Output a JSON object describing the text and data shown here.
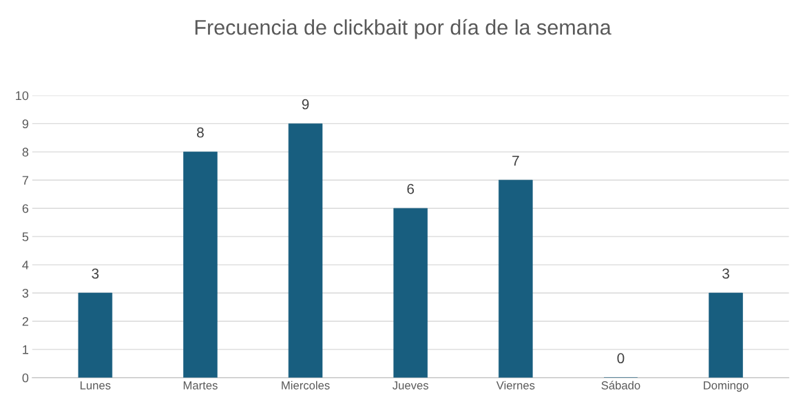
{
  "chart_data": {
    "type": "bar",
    "title": "Frecuencia de clickbait por día de la semana",
    "categories": [
      "Lunes",
      "Martes",
      "Miercoles",
      "Jueves",
      "Viernes",
      "Sábado",
      "Domingo"
    ],
    "values": [
      3,
      8,
      9,
      6,
      7,
      0,
      3
    ],
    "color": "#185e7f",
    "ylim": [
      0,
      10
    ],
    "yticks": [
      0,
      1,
      2,
      3,
      4,
      5,
      6,
      7,
      8,
      9,
      10
    ],
    "grid": "y",
    "data_labels": true
  }
}
